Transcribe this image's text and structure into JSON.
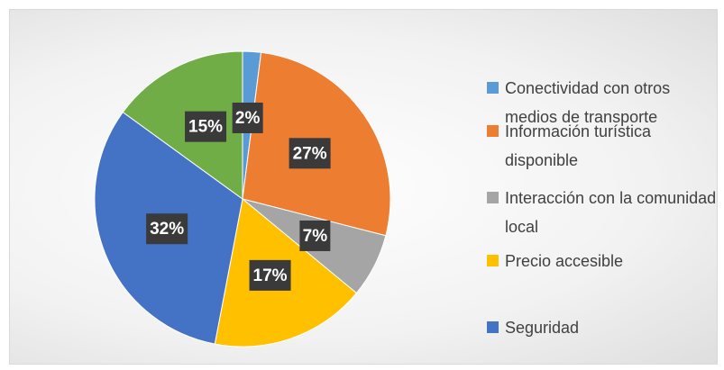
{
  "chart_data": {
    "type": "pie",
    "categories": [
      "Conectividad con otros medios de transporte",
      "Información turística disponible",
      "Interacción con la comunidad local",
      "Precio accesible",
      "Seguridad",
      null
    ],
    "values": [
      2,
      27,
      7,
      17,
      32,
      15
    ],
    "value_labels": [
      "2%",
      "27%",
      "7%",
      "17%",
      "32%",
      "15%"
    ],
    "colors": [
      "#5b9bd5",
      "#ed7d31",
      "#a5a5a5",
      "#ffc000",
      "#4472c4",
      "#70ad47"
    ],
    "legend": "right"
  }
}
